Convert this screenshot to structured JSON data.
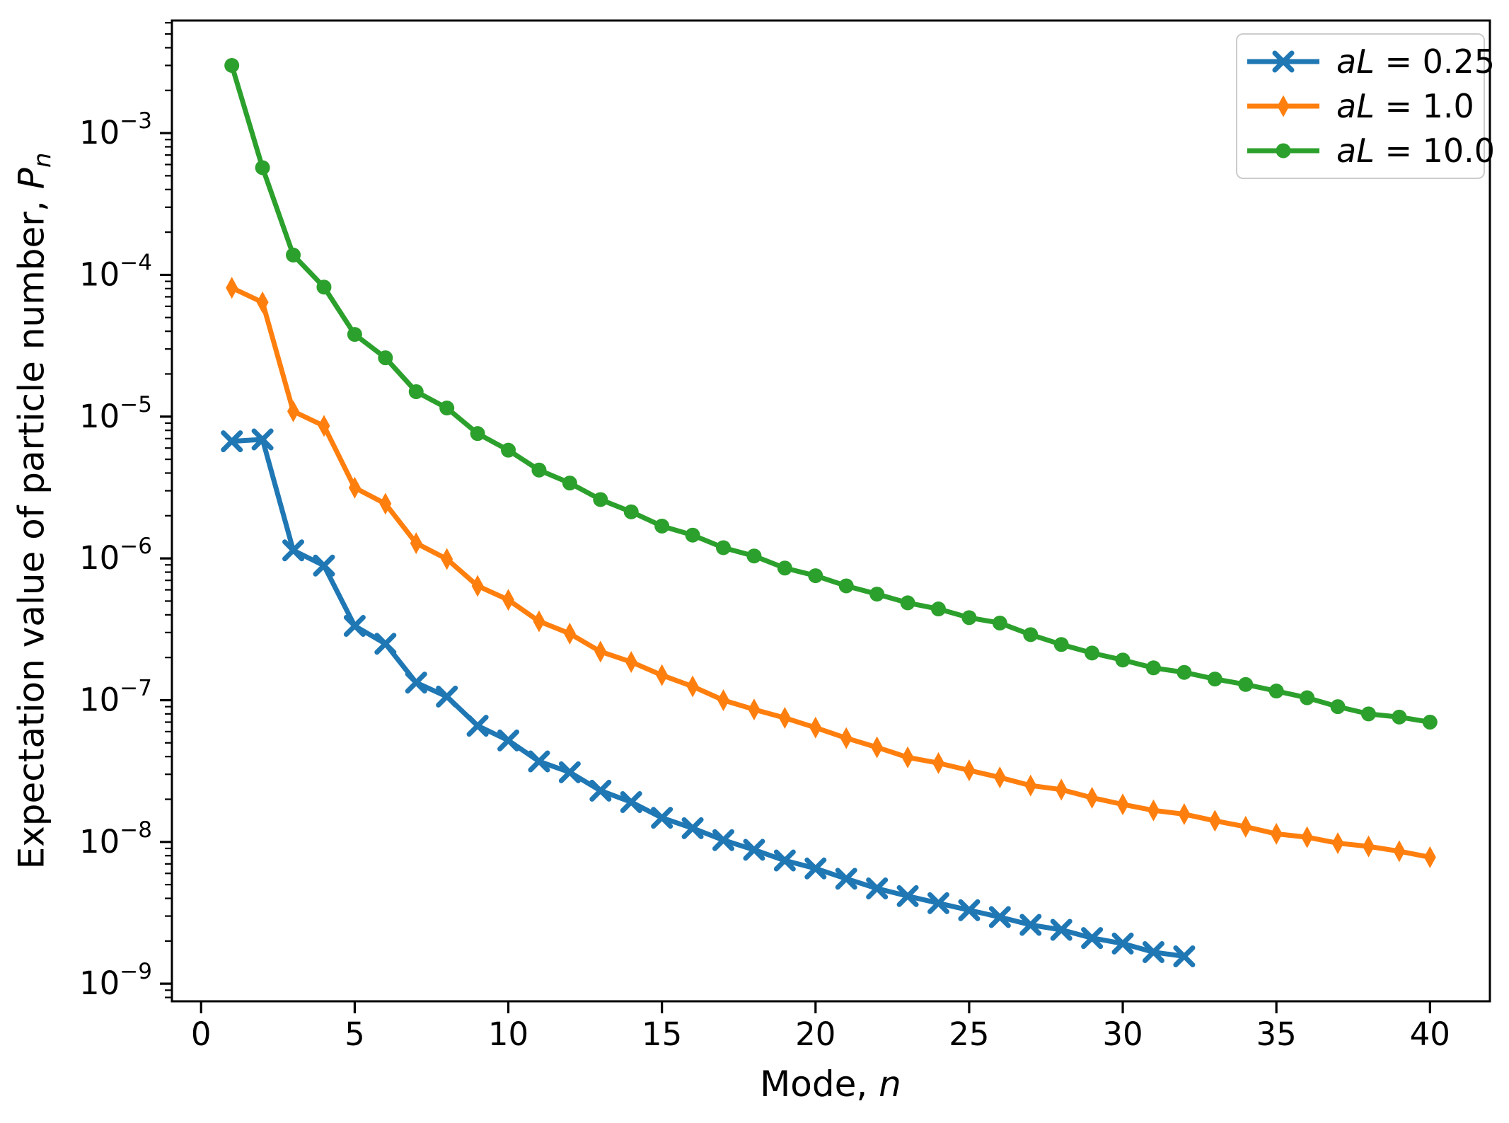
{
  "chart_data": {
    "type": "line",
    "title": "",
    "xlabel": "Mode, n",
    "xlabel_parts": {
      "text": "Mode, ",
      "italic": "n"
    },
    "ylabel": "Expectation value of particle number, P_n",
    "ylabel_parts": {
      "text": "Expectation value of particle number, ",
      "italic": "P",
      "subscript": "n"
    },
    "x_ticks": [
      0,
      5,
      10,
      15,
      20,
      25,
      30,
      35,
      40
    ],
    "y_tick_exponents": [
      -3,
      -4,
      -5,
      -6,
      -7,
      -8,
      -9
    ],
    "y_tick_base": "10",
    "xlim": [
      -0.95,
      41.95
    ],
    "ylog_lim": [
      -9.124,
      -2.206
    ],
    "grid": false,
    "yscale": "log",
    "legend_position": "upper right",
    "axis_color": "#000000",
    "series": [
      {
        "name": "aL = 0.25",
        "label_italic": "aL",
        "label_rest": " = 0.25",
        "color": "#1f77b4",
        "marker": "x",
        "x": [
          1,
          2,
          3,
          4,
          5,
          6,
          7,
          8,
          9,
          10,
          11,
          12,
          13,
          14,
          15,
          16,
          17,
          18,
          19,
          20,
          21,
          22,
          23,
          24,
          25,
          26,
          27,
          28,
          29,
          30,
          31,
          32
        ],
        "y": [
          6.7e-06,
          6.9e-06,
          1.14e-06,
          8.9e-07,
          3.34e-07,
          2.5e-07,
          1.33e-07,
          1.06e-07,
          6.6e-08,
          5.2e-08,
          3.7e-08,
          3.1e-08,
          2.3e-08,
          1.91e-08,
          1.48e-08,
          1.25e-08,
          1.03e-08,
          8.8e-09,
          7.4e-09,
          6.5e-09,
          5.5e-09,
          4.7e-09,
          4.15e-09,
          3.7e-09,
          3.3e-09,
          2.95e-09,
          2.6e-09,
          2.4e-09,
          2.1e-09,
          1.92e-09,
          1.67e-09,
          1.56e-09
        ]
      },
      {
        "name": "aL = 1.0",
        "label_italic": "aL",
        "label_rest": " = 1.0",
        "color": "#ff7f0e",
        "marker": "thin-diamond",
        "x": [
          1,
          2,
          3,
          4,
          5,
          6,
          7,
          8,
          9,
          10,
          11,
          12,
          13,
          14,
          15,
          16,
          17,
          18,
          19,
          20,
          21,
          22,
          23,
          24,
          25,
          26,
          27,
          28,
          29,
          30,
          31,
          32,
          33,
          34,
          35,
          36,
          37,
          38,
          39,
          40
        ],
        "y": [
          8.1e-05,
          6.4e-05,
          1.09e-05,
          8.6e-06,
          3.15e-06,
          2.43e-06,
          1.28e-06,
          9.9e-07,
          6.4e-07,
          5.1e-07,
          3.6e-07,
          2.95e-07,
          2.2e-07,
          1.86e-07,
          1.5e-07,
          1.25e-07,
          1e-07,
          8.6e-08,
          7.5e-08,
          6.4e-08,
          5.4e-08,
          4.65e-08,
          3.95e-08,
          3.6e-08,
          3.2e-08,
          2.85e-08,
          2.5e-08,
          2.34e-08,
          2.05e-08,
          1.84e-08,
          1.67e-08,
          1.57e-08,
          1.41e-08,
          1.28e-08,
          1.14e-08,
          1.08e-08,
          9.8e-09,
          9.3e-09,
          8.6e-09,
          7.8e-09
        ]
      },
      {
        "name": "aL = 10.0",
        "label_italic": "aL",
        "label_rest": " = 10.0",
        "color": "#2ca02c",
        "marker": "circle",
        "x": [
          1,
          2,
          3,
          4,
          5,
          6,
          7,
          8,
          9,
          10,
          11,
          12,
          13,
          14,
          15,
          16,
          17,
          18,
          19,
          20,
          21,
          22,
          23,
          24,
          25,
          26,
          27,
          28,
          29,
          30,
          31,
          32,
          33,
          34,
          35,
          36,
          37,
          38,
          39,
          40
        ],
        "y": [
          0.003,
          0.00057,
          0.000138,
          8.2e-05,
          3.8e-05,
          2.6e-05,
          1.5e-05,
          1.15e-05,
          7.6e-06,
          5.8e-06,
          4.2e-06,
          3.4e-06,
          2.6e-06,
          2.13e-06,
          1.69e-06,
          1.46e-06,
          1.19e-06,
          1.04e-06,
          8.55e-07,
          7.55e-07,
          6.4e-07,
          5.6e-07,
          4.86e-07,
          4.4e-07,
          3.82e-07,
          3.5e-07,
          2.9e-07,
          2.47e-07,
          2.15e-07,
          1.92e-07,
          1.69e-07,
          1.57e-07,
          1.41e-07,
          1.29e-07,
          1.16e-07,
          1.04e-07,
          9e-08,
          8e-08,
          7.6e-08,
          7e-08
        ]
      }
    ]
  }
}
